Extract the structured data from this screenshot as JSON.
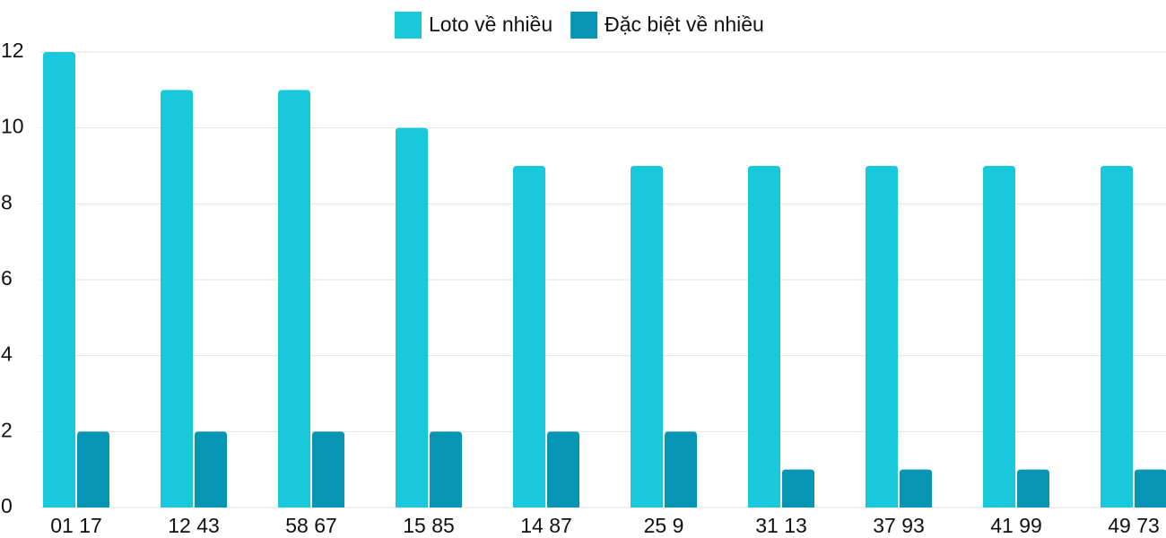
{
  "chart_data": {
    "type": "bar",
    "categories": [
      "01 17",
      "12 43",
      "58 67",
      "15 85",
      "14 87",
      "25 9",
      "31 13",
      "37 93",
      "41 99",
      "49 73"
    ],
    "series": [
      {
        "name": "Loto về nhiều",
        "color": "#1ac8db",
        "values": [
          12,
          11,
          11,
          10,
          9,
          9,
          9,
          9,
          9,
          9
        ]
      },
      {
        "name": "Đặc biệt về nhiều",
        "color": "#0795b5",
        "values": [
          2,
          2,
          2,
          2,
          2,
          2,
          1,
          1,
          1,
          1
        ]
      }
    ],
    "ylim": [
      0,
      12
    ],
    "yticks": [
      0,
      2,
      4,
      6,
      8,
      10,
      12
    ],
    "grid": true,
    "legend": "top"
  }
}
